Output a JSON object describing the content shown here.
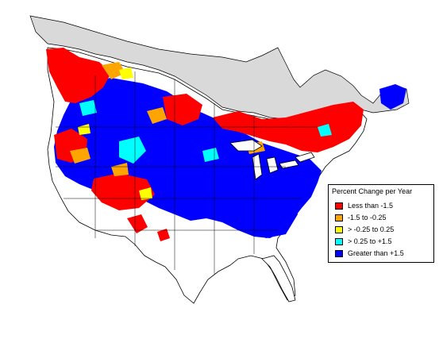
{
  "legend": {
    "title": "Percent Change per Year",
    "items": [
      {
        "label": "Less than -1.5",
        "color": "#ff0000"
      },
      {
        "label": "-1.5 to -0.25",
        "color": "#ffa500"
      },
      {
        "label": "> -0.25 to 0.25",
        "color": "#ffff00"
      },
      {
        "label": "> 0.25 to +1.5",
        "color": "#00ffff"
      },
      {
        "label": "Greater than +1.5",
        "color": "#0000ff"
      }
    ]
  },
  "colors": {
    "no_data_region": "#d9d9d9",
    "background": "#ffffff",
    "boundaries": "#000000"
  }
}
